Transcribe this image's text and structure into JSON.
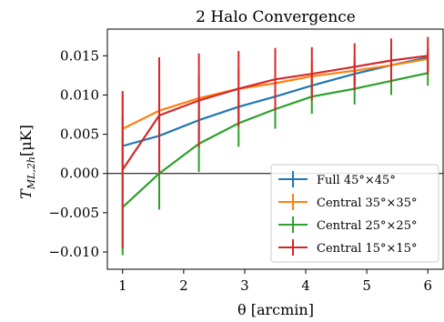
{
  "chart_data": {
    "type": "line",
    "title": "2 Halo Convergence",
    "xlabel": "θ [arcmin]",
    "ylabel": "T",
    "ylabel_sub": "ML,2h",
    "ylabel_unit": "[μK]",
    "xlim": [
      0.75,
      6.25
    ],
    "ylim": [
      -0.0122,
      0.0184
    ],
    "x_ticks": [
      1,
      2,
      3,
      4,
      5,
      6
    ],
    "x_tick_labels": [
      "1",
      "2",
      "3",
      "4",
      "5",
      "6"
    ],
    "y_ticks": [
      -0.01,
      -0.005,
      0.0,
      0.005,
      0.01,
      0.015
    ],
    "y_tick_labels": [
      "−0.010",
      "−0.005",
      "0.000",
      "0.005",
      "0.010",
      "0.015"
    ],
    "zero_line": true,
    "grid": false,
    "legend_position": "lower-right",
    "series": [
      {
        "name": "Full 45°×45°",
        "color": "#1f77b4",
        "x": [
          1.0,
          1.6,
          2.25,
          2.9,
          3.5,
          4.1,
          4.8,
          5.4,
          6.0
        ],
        "y": [
          0.0035,
          0.0048,
          0.0068,
          0.0085,
          0.0098,
          0.0112,
          0.0127,
          0.0138,
          0.0148
        ],
        "err": [
          0.0037,
          0.0035,
          0.0025,
          0.0022,
          0.0018,
          0.0016,
          0.0014,
          0.0012,
          0.0011
        ]
      },
      {
        "name": "Central 35°×35°",
        "color": "#ff7f0e",
        "x": [
          1.0,
          1.6,
          2.25,
          2.9,
          3.5,
          4.1,
          4.8,
          5.4,
          6.0
        ],
        "y": [
          0.0057,
          0.008,
          0.0096,
          0.0108,
          0.0115,
          0.0124,
          0.0131,
          0.0138,
          0.0146
        ],
        "err": [
          0.0043,
          0.0038,
          0.003,
          0.0025,
          0.0022,
          0.002,
          0.0018,
          0.0016,
          0.0015
        ]
      },
      {
        "name": "Central 25°×25°",
        "color": "#2ca02c",
        "x": [
          1.0,
          1.6,
          2.25,
          2.9,
          3.5,
          4.1,
          4.8,
          5.4,
          6.0
        ],
        "y": [
          -0.0043,
          0.0,
          0.0038,
          0.0064,
          0.0082,
          0.0098,
          0.0108,
          0.0118,
          0.0128
        ],
        "err": [
          0.0061,
          0.0046,
          0.0036,
          0.003,
          0.0025,
          0.0022,
          0.002,
          0.0018,
          0.0016
        ]
      },
      {
        "name": "Central 15°×15°",
        "color": "#d62728",
        "x": [
          1.0,
          1.6,
          2.25,
          2.9,
          3.5,
          4.1,
          4.8,
          5.4,
          6.0
        ],
        "y": [
          0.0005,
          0.0074,
          0.0093,
          0.0108,
          0.012,
          0.0127,
          0.0136,
          0.0144,
          0.015
        ],
        "err": [
          0.01,
          0.0074,
          0.006,
          0.0048,
          0.004,
          0.0034,
          0.003,
          0.0028,
          0.0024
        ]
      }
    ]
  }
}
